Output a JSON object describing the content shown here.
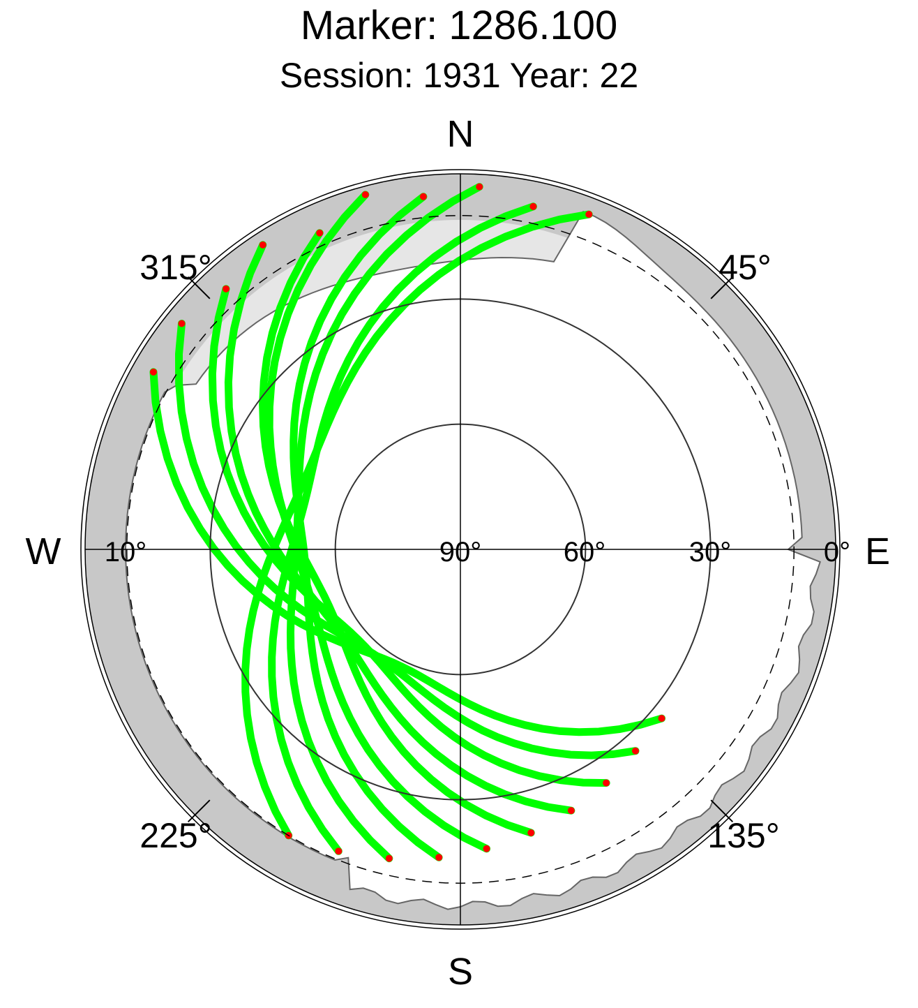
{
  "title": "Marker: 1286.100",
  "subtitle": "Session: 1931 Year: 22",
  "colors": {
    "track": "#00ff00",
    "endpoint": "#ff0000",
    "mask_outer": "#c8c8c8",
    "mask_inner": "#e6e6e6",
    "background": "#ffffff"
  },
  "chart_data": {
    "type": "scatter",
    "projection": "polar sky plot (azimuth clockwise from North, elevation 90° at centre)",
    "title": "Marker: 1286.100",
    "subtitle": "Session: 1931 Year: 22",
    "cardinal_labels": [
      "N",
      "E",
      "S",
      "W"
    ],
    "azimuth_labels": [
      "45°",
      "135°",
      "225°",
      "315°"
    ],
    "elevation_labels": [
      "90°",
      "60°",
      "30°",
      "0°",
      "10°"
    ],
    "elevation_rings_deg": [
      60,
      30
    ],
    "cutoff_elevation_deg": 10,
    "satellite_tracks": [
      {
        "az": [
          -60,
          -30,
          0,
          30,
          60
        ],
        "el_start": 27,
        "el_end": 5,
        "cz": 16
      },
      {
        "az": [
          -62,
          -31,
          0,
          31,
          62
        ],
        "el_start": 26,
        "el_end": 4,
        "cz": 14
      },
      {
        "az": [
          -64,
          -32,
          0,
          32,
          64
        ],
        "el_start": 24,
        "el_end": 6,
        "cz": 12
      },
      {
        "az": [
          -66,
          -33,
          0,
          33,
          66
        ],
        "el_start": 22,
        "el_end": 3,
        "cz": 10
      },
      {
        "az": [
          -68,
          -34,
          0,
          34,
          68
        ],
        "el_start": 20,
        "el_end": 7,
        "cz": 8
      },
      {
        "az": [
          -70,
          -35,
          0,
          35,
          70
        ],
        "el_start": 18,
        "el_end": 2,
        "cz": 6
      },
      {
        "az": [
          -72,
          -36,
          0,
          36,
          72
        ],
        "el_start": 16,
        "el_end": 5,
        "cz": 4
      },
      {
        "az": [
          -74,
          -37,
          0,
          37,
          74
        ],
        "el_start": 14,
        "el_end": 3,
        "cz": 2
      },
      {
        "az": [
          -76,
          -38,
          0,
          38,
          76
        ],
        "el_start": 12,
        "el_end": 6,
        "cz": 0
      },
      {
        "az": [
          -78,
          -39,
          0,
          39,
          78
        ],
        "el_start": 10,
        "el_end": 4,
        "cz": -2
      }
    ],
    "legend": "none",
    "grid": true
  }
}
